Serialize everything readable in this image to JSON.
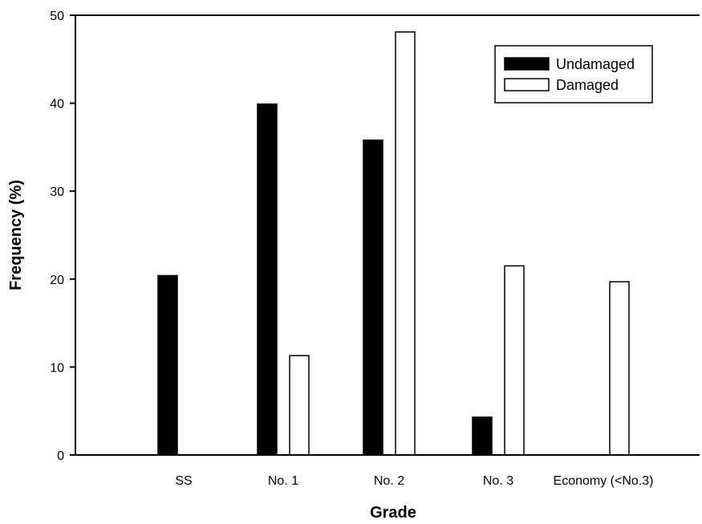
{
  "chart_data": {
    "type": "bar",
    "title": "",
    "xlabel": "Grade",
    "ylabel": "Frequency (%)",
    "ylim": [
      0,
      50
    ],
    "yticks": [
      0,
      10,
      20,
      30,
      40,
      50
    ],
    "grid": false,
    "legend_position": "top-right",
    "categories": [
      "SS",
      "No. 1",
      "No. 2",
      "No. 3",
      "Economy (<No.3)"
    ],
    "series": [
      {
        "name": "Undamaged",
        "color": "#000000",
        "values": [
          20.4,
          39.9,
          35.8,
          4.3,
          0
        ]
      },
      {
        "name": "Damaged",
        "color": "#ffffff",
        "values": [
          0,
          11.3,
          48.1,
          21.5,
          19.7
        ]
      }
    ]
  }
}
